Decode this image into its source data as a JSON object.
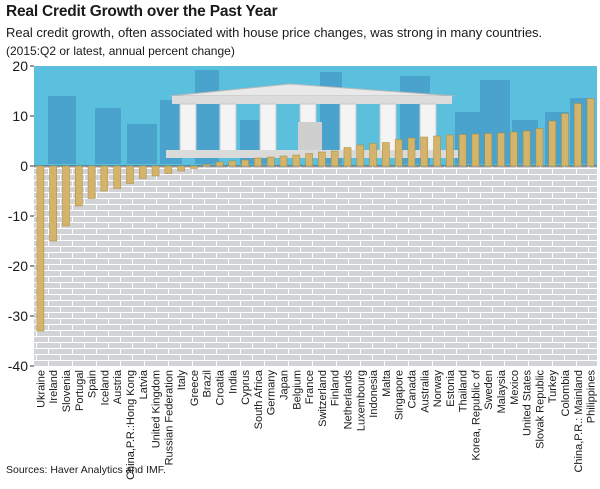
{
  "title": "Real Credit Growth over the Past Year",
  "subtitle": "Real credit growth, often associated with house price changes, was strong in many countries.",
  "units": "(2015:Q2 or latest, annual percent change)",
  "source": "Sources: Haver Analytics and IMF.",
  "colors": {
    "bar": "#d3b46a",
    "bar_edge": "#a98a3e",
    "sky": "#5bc0de",
    "building": "#4aa3cc",
    "pavement": "#d2d3d6",
    "pavement_line": "#ffffff",
    "temple": "#e9e9e9"
  },
  "chart_data": {
    "type": "bar",
    "title": "Real Credit Growth over the Past Year",
    "ylim": [
      -40,
      20
    ],
    "yticks": [
      -40,
      -30,
      -20,
      -10,
      0,
      10,
      20
    ],
    "grid": false,
    "categories": [
      "Ukraine",
      "Ireland",
      "Slovenia",
      "Portugal",
      "Spain",
      "Iceland",
      "Austria",
      "China,P.R.:Hong Kong",
      "Latvia",
      "United Kingdom",
      "Russian Federation",
      "Italy",
      "Greece",
      "Brazil",
      "Croatia",
      "India",
      "Cyprus",
      "South Africa",
      "Germany",
      "Japan",
      "Belgium",
      "France",
      "Switzerland",
      "Finland",
      "Netherlands",
      "Luxembourg",
      "Indonesia",
      "Malta",
      "Singapore",
      "Canada",
      "Australia",
      "Norway",
      "Estonia",
      "Thailand",
      "Korea, Republic of",
      "Sweden",
      "Malaysia",
      "Mexico",
      "United States",
      "Slovak Republic",
      "Turkey",
      "Colombia",
      "China,P.R.: Mainland",
      "Philippines"
    ],
    "values": [
      -33,
      -15,
      -12,
      -8,
      -6.5,
      -5,
      -4.5,
      -3.5,
      -2.5,
      -2,
      -1.5,
      -1,
      -0.5,
      0.3,
      0.8,
      1,
      1.2,
      1.6,
      1.8,
      2,
      2.2,
      2.5,
      2.8,
      3,
      3.7,
      4.2,
      4.5,
      4.7,
      5.3,
      5.6,
      5.8,
      6,
      6.2,
      6.3,
      6.4,
      6.5,
      6.6,
      6.8,
      7,
      7.5,
      9,
      10.5,
      12.5,
      13.5
    ]
  }
}
